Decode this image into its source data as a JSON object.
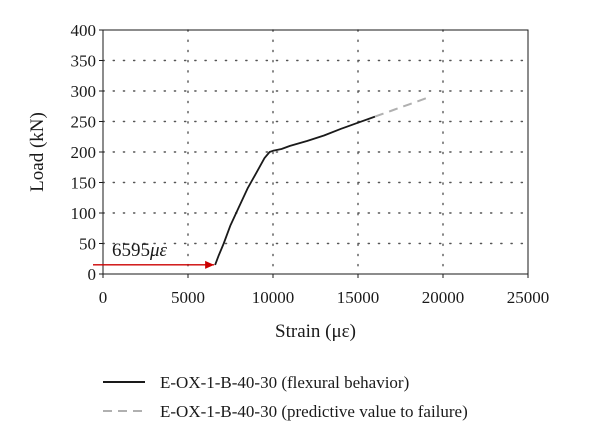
{
  "chart_data": {
    "type": "line",
    "xlabel": "Strain (με)",
    "ylabel": "Load (kN)",
    "xlim": [
      0,
      25000
    ],
    "ylim": [
      0,
      400
    ],
    "xticks": [
      0,
      5000,
      10000,
      15000,
      20000,
      25000
    ],
    "yticks": [
      0,
      50,
      100,
      150,
      200,
      250,
      300,
      350,
      400
    ],
    "xtick_labels": [
      "0",
      "5000",
      "10000",
      "15000",
      "20000",
      "25000"
    ],
    "ytick_labels": [
      "0",
      "50",
      "100",
      "150",
      "200",
      "250",
      "300",
      "350",
      "400"
    ],
    "grid": true,
    "legend_position": "below",
    "series": [
      {
        "name": "E-OX-1-B-40-30 (flexural behavior)",
        "color": "#1a1a1a",
        "style": "solid",
        "x": [
          6595,
          6800,
          7100,
          7500,
          8000,
          8500,
          9000,
          9500,
          9800,
          10000,
          10500,
          11000,
          12000,
          13000,
          14000,
          15000,
          16000
        ],
        "y": [
          15,
          30,
          50,
          80,
          110,
          140,
          165,
          190,
          200,
          202,
          205,
          210,
          218,
          227,
          238,
          248,
          258
        ]
      },
      {
        "name": "E-OX-1-B-40-30 (predictive value to failure)",
        "color": "#b0b0b0",
        "style": "dashed",
        "x": [
          16000,
          17000,
          18000,
          19000
        ],
        "y": [
          258,
          268,
          278,
          288
        ]
      }
    ],
    "annotations": [
      {
        "label": "6595",
        "unit": "με",
        "color": "#cc0000",
        "arrow_from": [
          0,
          15
        ],
        "arrow_to": [
          6595,
          15
        ]
      }
    ]
  }
}
